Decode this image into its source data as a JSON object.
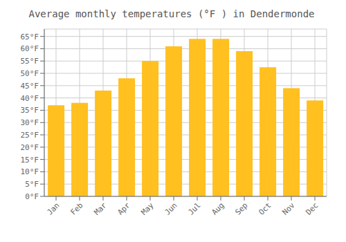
{
  "chart_data": {
    "type": "bar",
    "title": "Average monthly temperatures (°F ) in Dendermonde",
    "categories": [
      "Jan",
      "Feb",
      "Mar",
      "Apr",
      "May",
      "Jun",
      "Jul",
      "Aug",
      "Sep",
      "Oct",
      "Nov",
      "Dec"
    ],
    "values": [
      37,
      38,
      43,
      48,
      55,
      61,
      64,
      64,
      59,
      52.5,
      44,
      39
    ],
    "color": "#FFC020",
    "ylim": [
      0,
      68
    ],
    "yticks": [
      {
        "value": 0,
        "label": "0°F"
      },
      {
        "value": 5,
        "label": "5°F"
      },
      {
        "value": 10,
        "label": "10°F"
      },
      {
        "value": 15,
        "label": "15°F"
      },
      {
        "value": 20,
        "label": "20°F"
      },
      {
        "value": 25,
        "label": "25°F"
      },
      {
        "value": 30,
        "label": "30°F"
      },
      {
        "value": 35,
        "label": "35°F"
      },
      {
        "value": 40,
        "label": "40°F"
      },
      {
        "value": 45,
        "label": "45°F"
      },
      {
        "value": 50,
        "label": "50°F"
      },
      {
        "value": 55,
        "label": "55°F"
      },
      {
        "value": 60,
        "label": "60°F"
      },
      {
        "value": 65,
        "label": "65°F"
      }
    ],
    "grid": true
  }
}
